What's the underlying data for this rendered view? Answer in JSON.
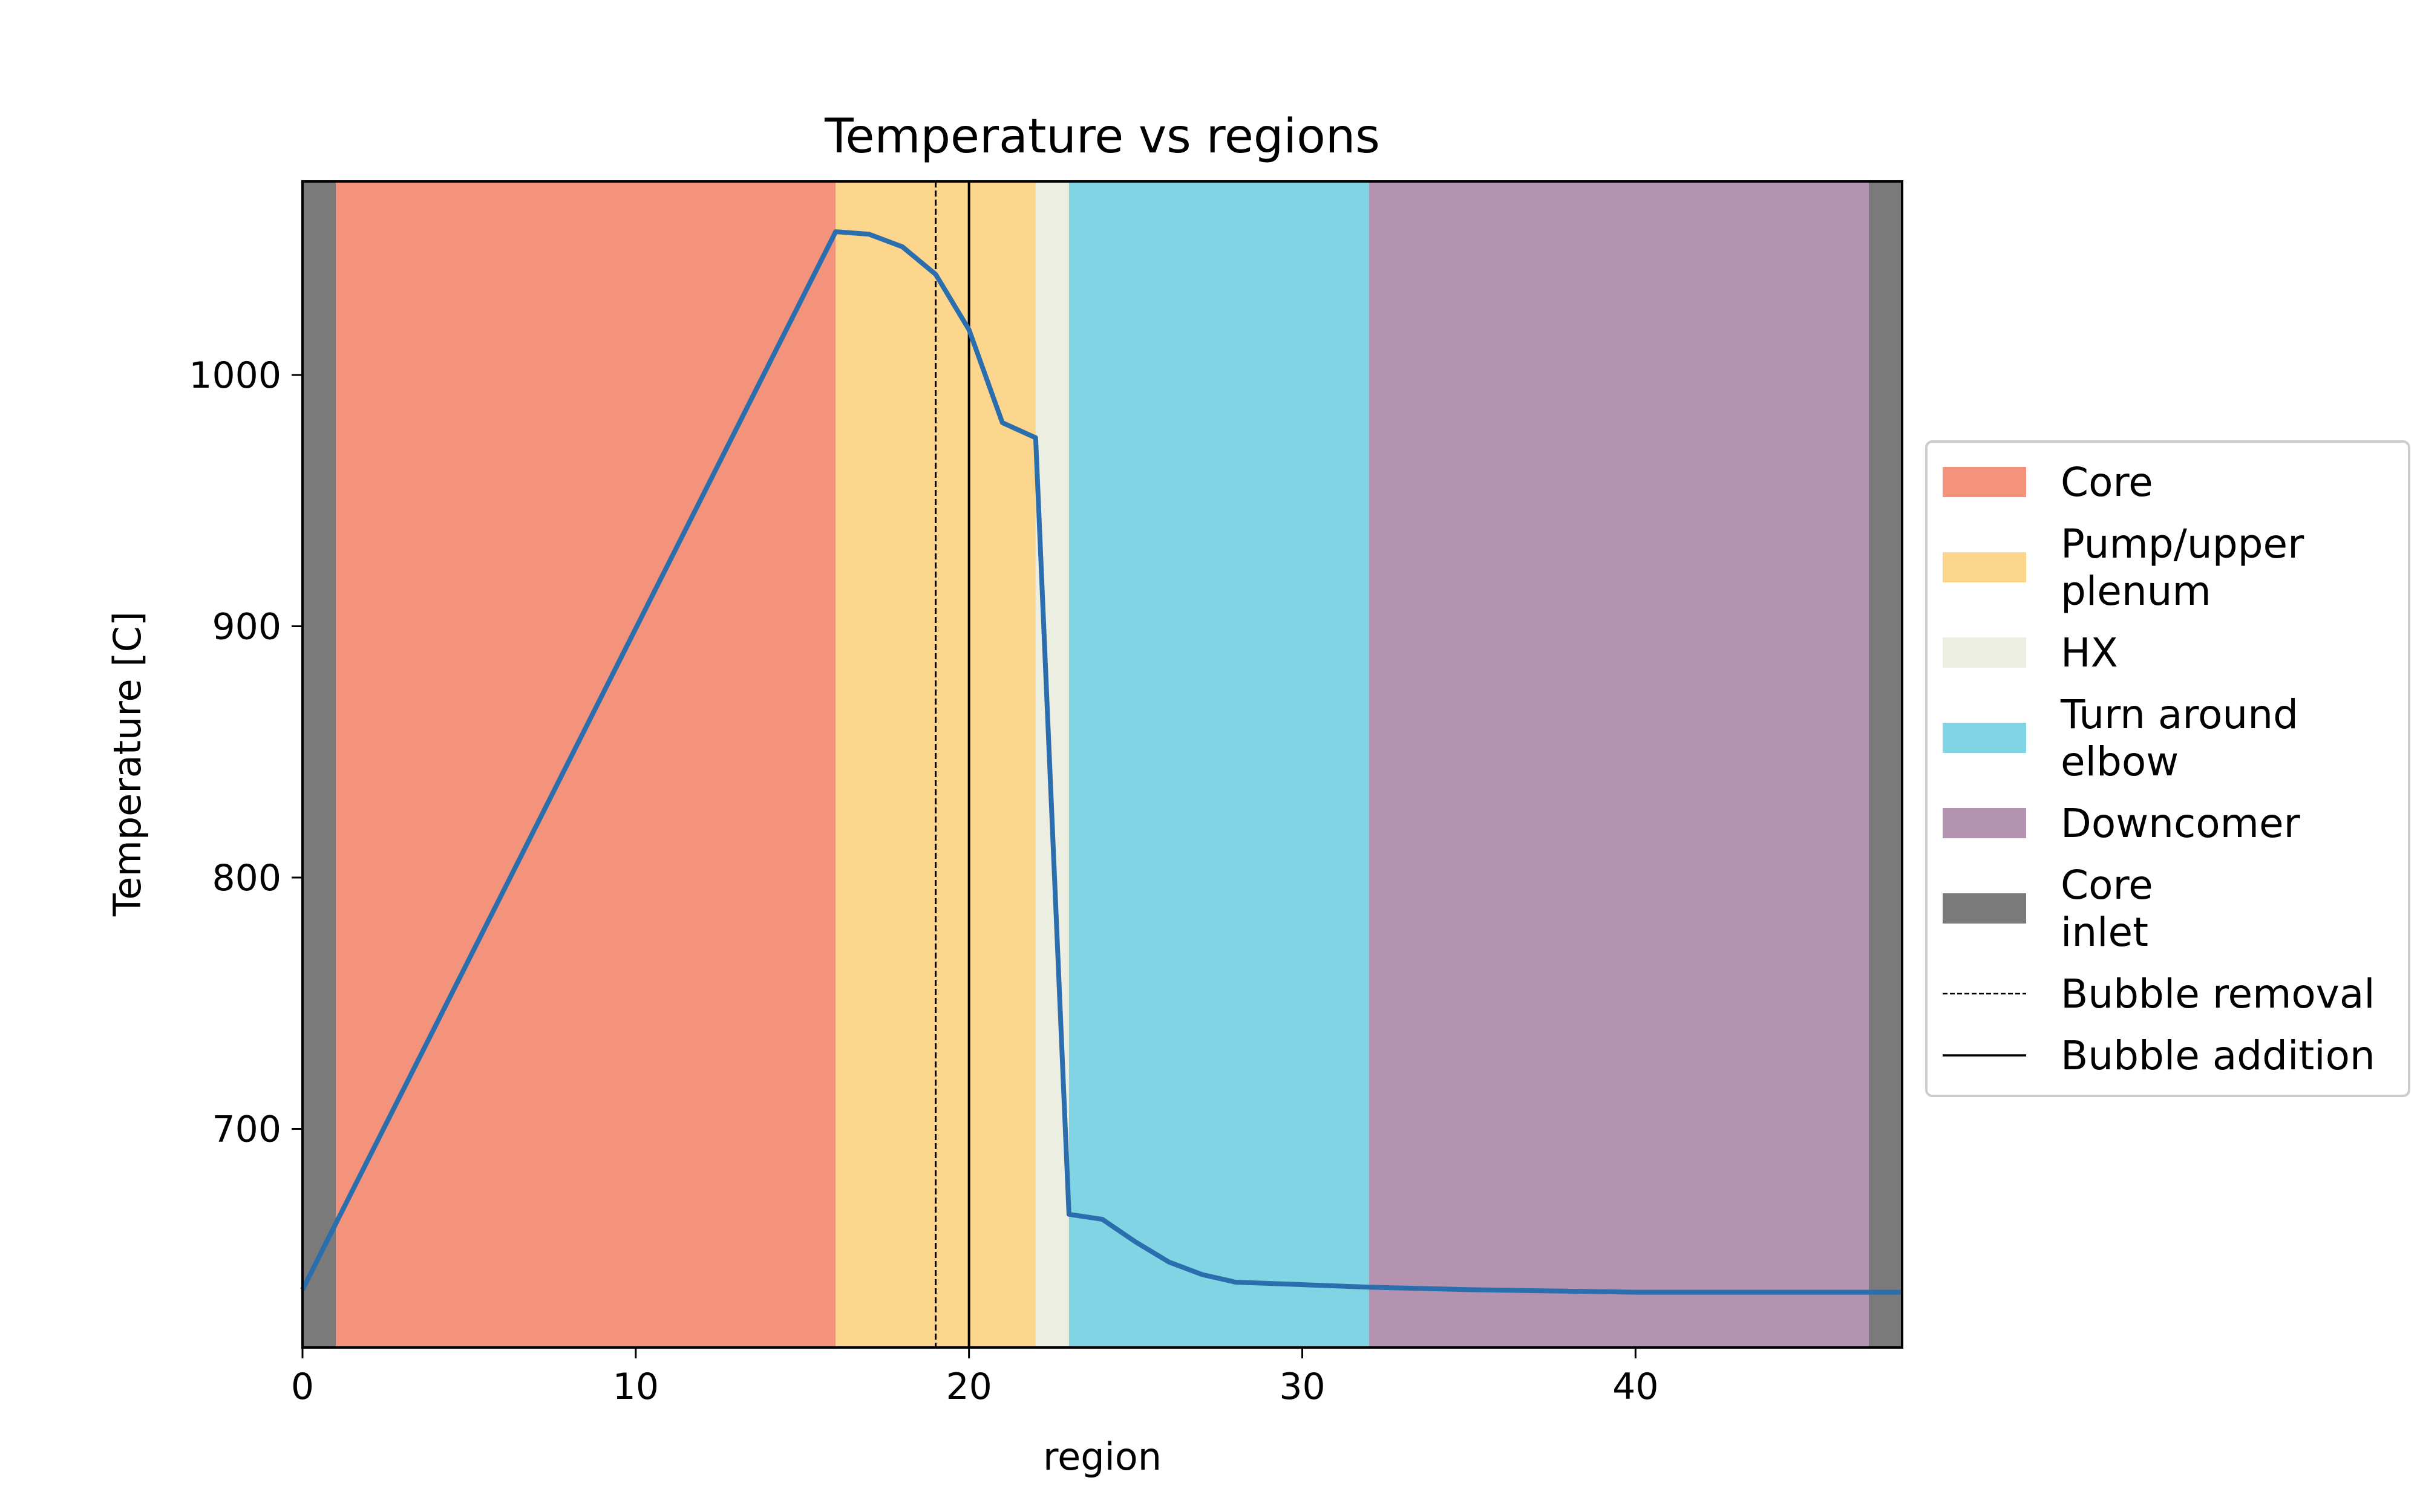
{
  "chart_data": {
    "type": "line",
    "title": "Temperature vs regions",
    "xlabel": "region",
    "ylabel": "Temperature [C]",
    "xlim": [
      0,
      48
    ],
    "ylim": [
      613,
      1077
    ],
    "x_ticks": [
      0,
      10,
      20,
      30,
      40
    ],
    "y_ticks": [
      700,
      800,
      900,
      1000
    ],
    "grid": false,
    "legend_position": "outside right",
    "series": [
      {
        "color": "#2a6ead",
        "x": [
          0,
          16,
          17,
          18,
          19,
          20,
          21,
          22,
          23,
          24,
          25,
          26,
          27,
          28,
          32,
          35,
          40,
          48
        ],
        "y": [
          636,
          1057,
          1056,
          1051,
          1040,
          1018,
          981,
          975,
          666,
          664,
          655,
          647,
          642,
          639,
          637,
          636,
          635,
          635
        ]
      }
    ],
    "regions": [
      {
        "name": "Core inlet",
        "x0": 0,
        "x1": 1,
        "color": "#7a7a7a"
      },
      {
        "name": "Core",
        "x0": 1,
        "x1": 16,
        "color": "#f3937c"
      },
      {
        "name": "Pump/upper plenum",
        "x0": 16,
        "x1": 22,
        "color": "#fdd68e"
      },
      {
        "name": "HX",
        "x0": 22,
        "x1": 23,
        "color": "#edeee2"
      },
      {
        "name": "Turn around elbow",
        "x0": 23,
        "x1": 32,
        "color": "#80d4e4"
      },
      {
        "name": "Downcomer",
        "x0": 32,
        "x1": 47,
        "color": "#b393af"
      },
      {
        "name": "Core inlet",
        "x0": 47,
        "x1": 48,
        "color": "#7a7a7a"
      }
    ],
    "vlines": [
      {
        "x": 19,
        "style": "dashed",
        "label": "Bubble removal"
      },
      {
        "x": 20,
        "style": "solid",
        "label": "Bubble addition"
      }
    ],
    "legend": [
      {
        "kind": "patch",
        "color": "#f3937c",
        "lines": [
          "Core"
        ]
      },
      {
        "kind": "patch",
        "color": "#fdd68e",
        "lines": [
          "Pump/upper",
          "plenum"
        ]
      },
      {
        "kind": "patch",
        "color": "#edeee2",
        "lines": [
          "HX"
        ]
      },
      {
        "kind": "patch",
        "color": "#80d4e4",
        "lines": [
          "Turn around",
          "elbow"
        ]
      },
      {
        "kind": "patch",
        "color": "#b393af",
        "lines": [
          "Downcomer"
        ]
      },
      {
        "kind": "patch",
        "color": "#7a7a7a",
        "lines": [
          "Core",
          "inlet"
        ]
      },
      {
        "kind": "dashed",
        "color": "#000000",
        "lines": [
          "Bubble removal"
        ]
      },
      {
        "kind": "solid",
        "color": "#000000",
        "lines": [
          "Bubble addition"
        ]
      }
    ]
  }
}
